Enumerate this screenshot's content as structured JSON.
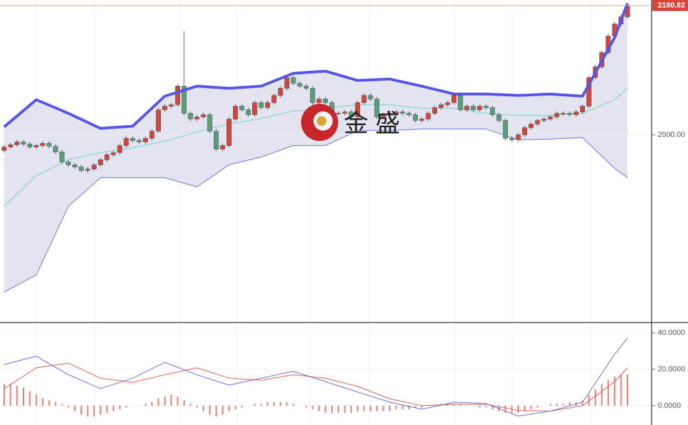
{
  "chart_data": [
    {
      "type": "candlestick",
      "last_price": 2180.82,
      "watermark": "金 盛",
      "ylim": [
        1738.4,
        2188.5
      ],
      "yticks": [
        {
          "value": 2000,
          "label": "2000.00"
        }
      ],
      "up_color": "#d0473f",
      "down_color": "#5a9e7c",
      "open": [
        1978,
        1983,
        1986,
        1990,
        1987,
        1983,
        1985,
        1988,
        1984,
        1976,
        1962,
        1958,
        1955,
        1950,
        1952,
        1958,
        1965,
        1972,
        1975,
        1985,
        1995,
        1992,
        1990,
        1995,
        2005,
        2035,
        2040,
        2042,
        2068,
        2030,
        2022,
        2025,
        2028,
        2005,
        1980,
        1985,
        2022,
        2040,
        2035,
        2028,
        2045,
        2038,
        2045,
        2055,
        2065,
        2080,
        2072,
        2068,
        2065,
        2045,
        2050,
        2045,
        2030,
        2030,
        2032,
        2025,
        2045,
        2055,
        2050,
        2025,
        2028,
        2030,
        2032,
        2030,
        2028,
        2020,
        2022,
        2030,
        2038,
        2042,
        2045,
        2055,
        2035,
        2040,
        2035,
        2040,
        2038,
        2028,
        2020,
        1995,
        1993,
        2000,
        2010,
        2015,
        2020,
        2022,
        2025,
        2030,
        2030,
        2028,
        2032,
        2040,
        2080,
        2095,
        2115,
        2138,
        2155,
        2165
      ],
      "high": [
        1986,
        1989,
        1993,
        1993,
        1990,
        1988,
        1991,
        1991,
        1987,
        1979,
        1965,
        1961,
        1958,
        1955,
        1961,
        1968,
        1975,
        1978,
        1988,
        1998,
        1998,
        1995,
        1998,
        2008,
        2038,
        2043,
        2045,
        2071,
        2145,
        2033,
        2028,
        2031,
        2031,
        2008,
        1988,
        2025,
        2043,
        2043,
        2038,
        2048,
        2048,
        2048,
        2058,
        2068,
        2083,
        2083,
        2075,
        2071,
        2068,
        2053,
        2053,
        2048,
        2033,
        2035,
        2035,
        2048,
        2058,
        2058,
        2053,
        2031,
        2033,
        2035,
        2035,
        2033,
        2031,
        2025,
        2033,
        2041,
        2045,
        2048,
        2058,
        2058,
        2043,
        2043,
        2043,
        2043,
        2041,
        2031,
        2023,
        1998,
        2003,
        2013,
        2018,
        2023,
        2025,
        2028,
        2033,
        2033,
        2033,
        2035,
        2043,
        2083,
        2098,
        2118,
        2141,
        2158,
        2168,
        2183
      ],
      "low": [
        1975,
        1980,
        1983,
        1984,
        1980,
        1980,
        1982,
        1981,
        1973,
        1959,
        1955,
        1952,
        1947,
        1947,
        1949,
        1955,
        1962,
        1969,
        1972,
        1982,
        1989,
        1987,
        1987,
        1992,
        2002,
        2032,
        2037,
        2039,
        2027,
        2019,
        2019,
        2022,
        2002,
        1977,
        1977,
        1982,
        2019,
        2032,
        2025,
        2025,
        2035,
        2035,
        2042,
        2052,
        2062,
        2069,
        2065,
        2062,
        2042,
        2042,
        2042,
        2027,
        2027,
        2027,
        2022,
        2022,
        2042,
        2047,
        2022,
        2022,
        2025,
        2027,
        2027,
        2025,
        2017,
        2017,
        2019,
        2027,
        2035,
        2039,
        2042,
        2032,
        2032,
        2032,
        2032,
        2035,
        2025,
        2017,
        1992,
        1990,
        1990,
        1997,
        2007,
        2012,
        2017,
        2019,
        2022,
        2027,
        2025,
        2025,
        2029,
        2037,
        2077,
        2092,
        2112,
        2135,
        2152,
        2162
      ],
      "close": [
        1983,
        1986,
        1990,
        1987,
        1983,
        1985,
        1988,
        1984,
        1976,
        1962,
        1958,
        1955,
        1950,
        1952,
        1958,
        1965,
        1972,
        1975,
        1985,
        1995,
        1992,
        1990,
        1995,
        2005,
        2035,
        2040,
        2042,
        2068,
        2030,
        2022,
        2025,
        2028,
        2005,
        1980,
        1985,
        2022,
        2040,
        2035,
        2028,
        2045,
        2038,
        2045,
        2055,
        2065,
        2080,
        2072,
        2068,
        2065,
        2045,
        2050,
        2045,
        2030,
        2030,
        2032,
        2025,
        2045,
        2055,
        2050,
        2025,
        2028,
        2030,
        2032,
        2030,
        2028,
        2020,
        2022,
        2030,
        2038,
        2042,
        2045,
        2055,
        2035,
        2040,
        2035,
        2040,
        2038,
        2028,
        2020,
        1995,
        1993,
        2000,
        2010,
        2015,
        2020,
        2022,
        2025,
        2030,
        2030,
        2028,
        2032,
        2040,
        2080,
        2095,
        2115,
        2138,
        2155,
        2165,
        2180
      ],
      "bands": {
        "x": [
          0,
          5,
          10,
          15,
          20,
          25,
          30,
          35,
          40,
          45,
          50,
          55,
          60,
          65,
          70,
          75,
          80,
          85,
          90,
          95,
          97
        ],
        "upper": [
          2011,
          2049,
          2030,
          2009,
          2012,
          2054,
          2068,
          2065,
          2068,
          2086,
          2089,
          2076,
          2078,
          2068,
          2057,
          2057,
          2055,
          2057,
          2054,
          2136,
          2184
        ],
        "middle": [
          1900,
          1943,
          1965,
          1975,
          1982,
          1991,
          2004,
          2015,
          2023,
          2033,
          2037,
          2042,
          2042,
          2037,
          2037,
          2030,
          2027,
          2027,
          2030,
          2049,
          2065
        ],
        "lower": [
          1780,
          1804,
          1900,
          1940,
          1940,
          1940,
          1927,
          1958,
          1969,
          1985,
          1985,
          2006,
          2006,
          2008,
          2008,
          2008,
          1993,
          1994,
          1996,
          1953,
          1940
        ],
        "upper_color": "#5656e6",
        "middle_color": "#6fd6c6",
        "lower_color": "#7070dd"
      }
    },
    {
      "type": "macd",
      "ylim": [
        -10.6,
        45.3
      ],
      "yticks": [
        {
          "value": 40,
          "label": "40.0000"
        },
        {
          "value": 20,
          "label": "20.0000"
        },
        {
          "value": 0,
          "label": "0.0000"
        }
      ],
      "x": [
        0,
        5,
        10,
        15,
        20,
        25,
        30,
        35,
        40,
        45,
        50,
        55,
        60,
        65,
        70,
        75,
        80,
        85,
        90,
        95,
        97
      ],
      "dif": [
        22.6,
        27.2,
        17.0,
        9.4,
        15.1,
        23.8,
        17.0,
        11.3,
        15.1,
        18.9,
        13.2,
        7.5,
        1.9,
        -1.9,
        1.9,
        1.1,
        -5.7,
        -3.0,
        1.9,
        28.3,
        37.0
      ],
      "dea": [
        9.4,
        20.8,
        23.4,
        15.1,
        12.8,
        17.0,
        20.8,
        15.1,
        14.0,
        17.0,
        15.1,
        10.6,
        3.8,
        0,
        0.8,
        0.8,
        -2.6,
        -3.0,
        0,
        13.2,
        20.8
      ],
      "histogram": [
        12,
        12,
        11,
        10,
        8,
        6,
        4,
        3,
        2,
        1,
        -1,
        -3,
        -5,
        -6,
        -6,
        -5,
        -4,
        -3,
        -2,
        -1,
        0,
        0,
        1,
        2,
        4,
        5,
        6,
        5,
        3,
        1,
        -1,
        -3,
        -5,
        -6,
        -5,
        -3,
        -2,
        -1,
        0,
        1,
        1,
        2,
        2,
        2,
        2,
        1,
        0,
        -1,
        -2,
        -3,
        -4,
        -4,
        -4,
        -4,
        -4,
        -3,
        -3,
        -3,
        -3,
        -3,
        -3,
        -2,
        -2,
        -2,
        -1,
        -1,
        0,
        0,
        1,
        1,
        1,
        1,
        0,
        0,
        -1,
        -1,
        -2,
        -3,
        -4,
        -4,
        -4,
        -3,
        -2,
        -1,
        0,
        1,
        1,
        1,
        2,
        2,
        3,
        6,
        9,
        12,
        14,
        16,
        17,
        17
      ],
      "dif_color": "#6a6ae6",
      "dea_color": "#e85a4f",
      "histogram_color": "#f07a70"
    }
  ]
}
